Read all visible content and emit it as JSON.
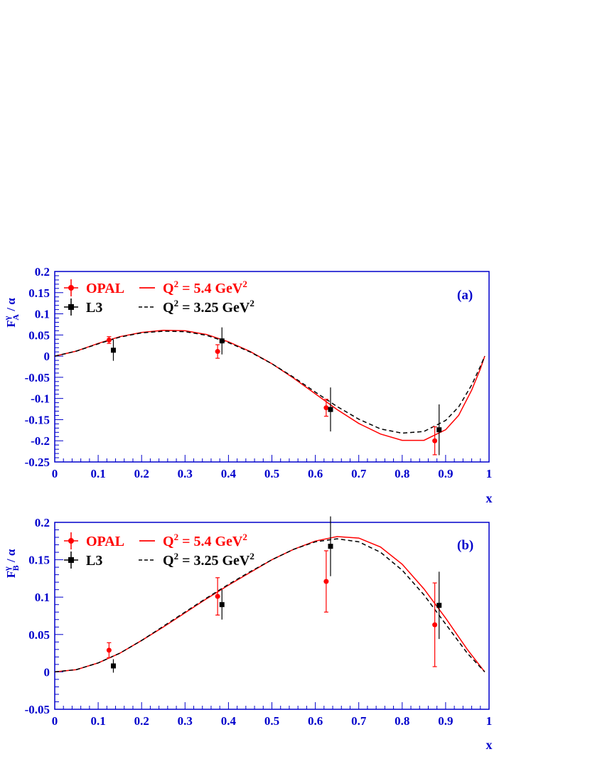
{
  "chart_data": [
    {
      "type": "line",
      "panel_label": "(a)",
      "ylabel_main": "F",
      "ylabel_sup": "γ",
      "ylabel_sub": "A",
      "ylabel_rest": " / α",
      "xlabel": "x",
      "xlim": [
        0,
        1
      ],
      "ylim": [
        -0.25,
        0.2
      ],
      "xticks": [
        0,
        0.1,
        0.2,
        0.3,
        0.4,
        0.5,
        0.6,
        0.7,
        0.8,
        0.9,
        1
      ],
      "xtick_labels": [
        "0",
        "0.1",
        "0.2",
        "0.3",
        "0.4",
        "0.5",
        "0.6",
        "0.7",
        "0.8",
        "0.9",
        "1"
      ],
      "yticks": [
        -0.25,
        -0.2,
        -0.15,
        -0.1,
        -0.05,
        0,
        0.05,
        0.1,
        0.15,
        0.2
      ],
      "ytick_labels": [
        "-0.25",
        "-0.2",
        "-0.15",
        "-0.1",
        "-0.05",
        "0",
        "0.05",
        "0.1",
        "0.15",
        "0.2"
      ],
      "legend": {
        "placement": "top-left",
        "opal": "OPAL",
        "l3": "L3",
        "solid_q": "Q",
        "solid_exp": "2",
        "solid_val": " = 5.4 GeV",
        "solid_exp2": "2",
        "dashed_q": "Q",
        "dashed_exp": "2",
        "dashed_val": " = 3.25 GeV",
        "dashed_exp2": "2"
      },
      "series": [
        {
          "name": "OPAL",
          "kind": "points",
          "color": "#ff0000",
          "marker": "circle",
          "x": [
            0.125,
            0.375,
            0.625,
            0.875
          ],
          "y": [
            0.038,
            0.011,
            -0.122,
            -0.2
          ],
          "err_lo": [
            0.008,
            0.016,
            0.02,
            0.033
          ],
          "err_hi": [
            0.008,
            0.016,
            0.02,
            0.033
          ]
        },
        {
          "name": "L3",
          "kind": "points",
          "color": "#000000",
          "marker": "square",
          "x": [
            0.135,
            0.385,
            0.635,
            0.885
          ],
          "y": [
            0.014,
            0.036,
            -0.126,
            -0.174
          ],
          "err_lo": [
            0.025,
            0.032,
            0.052,
            0.06
          ],
          "err_hi": [
            0.025,
            0.032,
            0.052,
            0.06
          ]
        },
        {
          "name": "Q² = 5.4 GeV²",
          "kind": "curve",
          "color": "#ff0000",
          "dash": "solid",
          "x": [
            0,
            0.05,
            0.1,
            0.15,
            0.2,
            0.25,
            0.3,
            0.35,
            0.4,
            0.45,
            0.5,
            0.55,
            0.6,
            0.65,
            0.7,
            0.75,
            0.8,
            0.85,
            0.9,
            0.93,
            0.96,
            0.98,
            0.99
          ],
          "y": [
            0,
            0.012,
            0.03,
            0.046,
            0.056,
            0.061,
            0.06,
            0.051,
            0.034,
            0.011,
            -0.018,
            -0.052,
            -0.089,
            -0.126,
            -0.159,
            -0.184,
            -0.199,
            -0.199,
            -0.174,
            -0.14,
            -0.08,
            -0.03,
            0
          ]
        },
        {
          "name": "Q² = 3.25 GeV²",
          "kind": "curve",
          "color": "#000000",
          "dash": "dashed",
          "x": [
            0,
            0.05,
            0.1,
            0.15,
            0.2,
            0.25,
            0.3,
            0.35,
            0.4,
            0.45,
            0.5,
            0.55,
            0.6,
            0.65,
            0.7,
            0.75,
            0.8,
            0.85,
            0.9,
            0.93,
            0.96,
            0.98,
            0.99
          ],
          "y": [
            0,
            0.012,
            0.029,
            0.045,
            0.055,
            0.059,
            0.058,
            0.049,
            0.032,
            0.01,
            -0.018,
            -0.05,
            -0.085,
            -0.119,
            -0.149,
            -0.172,
            -0.182,
            -0.178,
            -0.152,
            -0.12,
            -0.068,
            -0.024,
            0
          ]
        }
      ]
    },
    {
      "type": "line",
      "panel_label": "(b)",
      "ylabel_main": "F",
      "ylabel_sup": "γ",
      "ylabel_sub": "B",
      "ylabel_rest": " / α",
      "xlabel": "x",
      "xlim": [
        0,
        1
      ],
      "ylim": [
        -0.05,
        0.2
      ],
      "xticks": [
        0,
        0.1,
        0.2,
        0.3,
        0.4,
        0.5,
        0.6,
        0.7,
        0.8,
        0.9,
        1
      ],
      "xtick_labels": [
        "0",
        "0.1",
        "0.2",
        "0.3",
        "0.4",
        "0.5",
        "0.6",
        "0.7",
        "0.8",
        "0.9",
        "1"
      ],
      "yticks": [
        -0.05,
        0,
        0.05,
        0.1,
        0.15,
        0.2
      ],
      "ytick_labels": [
        "-0.05",
        "0",
        "0.05",
        "0.1",
        "0.15",
        "0.2"
      ],
      "legend": {
        "placement": "top-left",
        "opal": "OPAL",
        "l3": "L3",
        "solid_q": "Q",
        "solid_exp": "2",
        "solid_val": " = 5.4 GeV",
        "solid_exp2": "2",
        "dashed_q": "Q",
        "dashed_exp": "2",
        "dashed_val": " = 3.25 GeV",
        "dashed_exp2": "2"
      },
      "series": [
        {
          "name": "OPAL",
          "kind": "points",
          "color": "#ff0000",
          "marker": "circle",
          "x": [
            0.125,
            0.375,
            0.625,
            0.875
          ],
          "y": [
            0.029,
            0.101,
            0.121,
            0.063
          ],
          "err_lo": [
            0.01,
            0.025,
            0.041,
            0.056
          ],
          "err_hi": [
            0.01,
            0.025,
            0.041,
            0.056
          ]
        },
        {
          "name": "L3",
          "kind": "points",
          "color": "#000000",
          "marker": "square",
          "x": [
            0.135,
            0.385,
            0.635,
            0.885
          ],
          "y": [
            0.008,
            0.09,
            0.168,
            0.089
          ],
          "err_lo": [
            0.009,
            0.02,
            0.04,
            0.045
          ],
          "err_hi": [
            0.009,
            0.02,
            0.04,
            0.045
          ]
        },
        {
          "name": "Q² = 5.4 GeV²",
          "kind": "curve",
          "color": "#ff0000",
          "dash": "solid",
          "x": [
            0,
            0.05,
            0.1,
            0.15,
            0.2,
            0.25,
            0.3,
            0.35,
            0.4,
            0.45,
            0.5,
            0.55,
            0.6,
            0.65,
            0.7,
            0.75,
            0.8,
            0.85,
            0.9,
            0.95,
            0.99
          ],
          "y": [
            0,
            0.003,
            0.012,
            0.025,
            0.042,
            0.06,
            0.079,
            0.098,
            0.116,
            0.133,
            0.15,
            0.164,
            0.175,
            0.181,
            0.179,
            0.167,
            0.144,
            0.111,
            0.072,
            0.03,
            0
          ]
        },
        {
          "name": "Q² = 3.25 GeV²",
          "kind": "curve",
          "color": "#000000",
          "dash": "dashed",
          "x": [
            0,
            0.05,
            0.1,
            0.15,
            0.2,
            0.25,
            0.3,
            0.35,
            0.4,
            0.45,
            0.5,
            0.55,
            0.6,
            0.65,
            0.7,
            0.75,
            0.8,
            0.85,
            0.9,
            0.95,
            0.99
          ],
          "y": [
            0,
            0.003,
            0.012,
            0.025,
            0.042,
            0.061,
            0.08,
            0.099,
            0.117,
            0.134,
            0.15,
            0.164,
            0.174,
            0.178,
            0.174,
            0.16,
            0.136,
            0.103,
            0.064,
            0.025,
            0
          ]
        }
      ]
    }
  ]
}
